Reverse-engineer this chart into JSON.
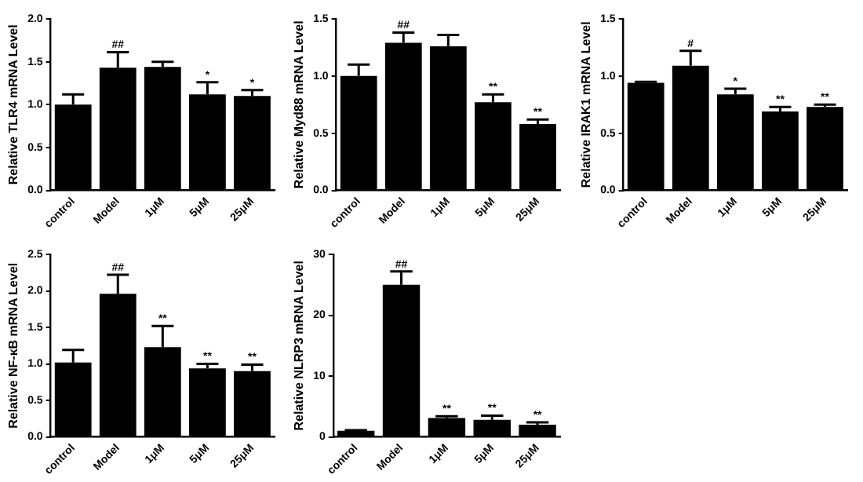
{
  "chart_data": [
    {
      "type": "bar",
      "ylabel": "Relative TLR4 mRNA Level",
      "categories": [
        "control",
        "Model",
        "1μM",
        "5μM",
        "25μM"
      ],
      "values": [
        1.0,
        1.43,
        1.44,
        1.12,
        1.1
      ],
      "errors": [
        [
          1.0,
          1.12
        ],
        [
          1.43,
          1.61
        ],
        [
          1.44,
          1.5
        ],
        [
          1.12,
          1.26
        ],
        [
          1.1,
          1.17
        ]
      ],
      "color": "#000000",
      "ylim": [
        0,
        2
      ],
      "yticks": [
        {
          "value": 0,
          "label": "0.0"
        },
        {
          "value": 0.5,
          "label": "0.5"
        },
        {
          "value": 1,
          "label": "1.0"
        },
        {
          "value": 1.5,
          "label": "1.5"
        },
        {
          "value": 2,
          "label": "2.0"
        }
      ],
      "grid": false,
      "legend": false,
      "annotations": [
        {
          "text": "##",
          "x": "Model",
          "y": 1.61
        },
        {
          "text": "*",
          "x": "5μM",
          "y": 1.26
        },
        {
          "text": "*",
          "x": "25μM",
          "y": 1.17
        }
      ]
    },
    {
      "type": "bar",
      "ylabel": "Relative Myd88 mRNA Level",
      "categories": [
        "control",
        "Model",
        "1μM",
        "5μM",
        "25μM"
      ],
      "values": [
        1.0,
        1.29,
        1.26,
        0.77,
        0.58
      ],
      "errors": [
        [
          1.0,
          1.1
        ],
        [
          1.29,
          1.38
        ],
        [
          1.26,
          1.36
        ],
        [
          0.77,
          0.84
        ],
        [
          0.58,
          0.62
        ]
      ],
      "color": "#000000",
      "ylim": [
        0,
        1.5
      ],
      "yticks": [
        {
          "value": 0,
          "label": "0.0"
        },
        {
          "value": 0.5,
          "label": "0.5"
        },
        {
          "value": 1,
          "label": "1.0"
        },
        {
          "value": 1.5,
          "label": "1.5"
        }
      ],
      "grid": false,
      "legend": false,
      "annotations": [
        {
          "text": "##",
          "x": "Model",
          "y": 1.38
        },
        {
          "text": "**",
          "x": "5μM",
          "y": 0.84
        },
        {
          "text": "**",
          "x": "25μM",
          "y": 0.62
        }
      ]
    },
    {
      "type": "bar",
      "ylabel": "Relative IRAK1 mRNA Level",
      "categories": [
        "control",
        "Model",
        "1μM",
        "5μM",
        "25μM"
      ],
      "values": [
        0.94,
        1.09,
        0.84,
        0.69,
        0.73
      ],
      "errors": [
        [
          0.94,
          0.95
        ],
        [
          1.09,
          1.22
        ],
        [
          0.84,
          0.89
        ],
        [
          0.69,
          0.73
        ],
        [
          0.73,
          0.75
        ]
      ],
      "color": "#000000",
      "ylim": [
        0,
        1.5
      ],
      "yticks": [
        {
          "value": 0,
          "label": "0.0"
        },
        {
          "value": 0.5,
          "label": "0.5"
        },
        {
          "value": 1,
          "label": "1.0"
        },
        {
          "value": 1.5,
          "label": "1.5"
        }
      ],
      "grid": false,
      "legend": false,
      "annotations": [
        {
          "text": "#",
          "x": "Model",
          "y": 1.22
        },
        {
          "text": "*",
          "x": "1μM",
          "y": 0.89
        },
        {
          "text": "**",
          "x": "5μM",
          "y": 0.73
        },
        {
          "text": "**",
          "x": "25μM",
          "y": 0.75
        }
      ]
    },
    {
      "type": "bar",
      "ylabel": "Relative NF-κB mRNA Level",
      "categories": [
        "control",
        "Model",
        "1μM",
        "5μM",
        "25μM"
      ],
      "values": [
        1.02,
        1.96,
        1.23,
        0.94,
        0.9
      ],
      "errors": [
        [
          1.02,
          1.19
        ],
        [
          1.96,
          2.22
        ],
        [
          1.23,
          1.52
        ],
        [
          0.94,
          1.0
        ],
        [
          0.9,
          0.99
        ]
      ],
      "color": "#000000",
      "ylim": [
        0,
        2.5
      ],
      "yticks": [
        {
          "value": 0,
          "label": "0.0"
        },
        {
          "value": 0.5,
          "label": "0.5"
        },
        {
          "value": 1,
          "label": "1.0"
        },
        {
          "value": 1.5,
          "label": "1.5"
        },
        {
          "value": 2,
          "label": "2.0"
        },
        {
          "value": 2.5,
          "label": "2.5"
        }
      ],
      "grid": false,
      "legend": false,
      "annotations": [
        {
          "text": "##",
          "x": "Model",
          "y": 2.22
        },
        {
          "text": "**",
          "x": "1μM",
          "y": 1.52
        },
        {
          "text": "**",
          "x": "5μM",
          "y": 1.0
        },
        {
          "text": "**",
          "x": "25μM",
          "y": 0.99
        }
      ]
    },
    {
      "type": "bar",
      "ylabel": "Relative NLRP3 mRNA Level",
      "categories": [
        "control",
        "Model",
        "1μM",
        "5μM",
        "25μM"
      ],
      "values": [
        1.0,
        25,
        3.1,
        2.8,
        2.0
      ],
      "errors": [
        [
          1.0,
          1.1
        ],
        [
          25,
          27.2
        ],
        [
          3.1,
          3.4
        ],
        [
          2.8,
          3.5
        ],
        [
          2.0,
          2.4
        ]
      ],
      "color": "#000000",
      "ylim": [
        0,
        30
      ],
      "yticks": [
        0,
        10,
        20,
        30
      ],
      "grid": false,
      "legend": false,
      "annotations": [
        {
          "text": "##",
          "x": "Model",
          "y": 27.2
        },
        {
          "text": "**",
          "x": "1μM",
          "y": 3.4
        },
        {
          "text": "**",
          "x": "5μM",
          "y": 3.5
        },
        {
          "text": "**",
          "x": "25μM",
          "y": 2.4
        }
      ]
    }
  ]
}
